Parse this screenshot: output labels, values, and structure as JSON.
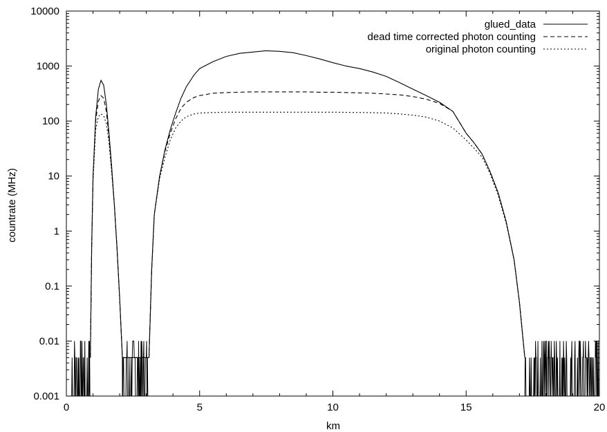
{
  "chart_data": {
    "type": "line",
    "title": "",
    "xlabel": "km",
    "ylabel": "countrate (MHz)",
    "xlim": [
      0,
      20
    ],
    "ylim": [
      0.001,
      10000
    ],
    "yscale": "log",
    "grid": false,
    "legend_position": "top-right",
    "x_ticks": [
      0,
      5,
      10,
      15,
      20
    ],
    "x_tick_labels": [
      "0",
      "5",
      "10",
      "15",
      "20"
    ],
    "y_ticks": [
      0.001,
      0.01,
      0.1,
      1,
      10,
      100,
      1000,
      10000
    ],
    "y_tick_labels": [
      "0.001",
      "0.01",
      "0.1",
      "1",
      "10",
      "100",
      "1000",
      "10000"
    ],
    "series": [
      {
        "name": "glued_data",
        "dash": "solid",
        "x": [
          0.9,
          0.95,
          1.0,
          1.1,
          1.2,
          1.3,
          1.4,
          1.5,
          1.6,
          1.7,
          1.8,
          1.9,
          2.0,
          2.1,
          3.1,
          3.2,
          3.3,
          3.5,
          3.7,
          3.9,
          4.1,
          4.3,
          4.5,
          4.8,
          5.0,
          5.5,
          6.0,
          6.5,
          7.0,
          7.5,
          8.0,
          8.5,
          9.0,
          9.5,
          10.0,
          10.5,
          11.0,
          11.5,
          12.0,
          12.5,
          13.0,
          13.5,
          14.0,
          14.5,
          15.0,
          15.3,
          15.6,
          15.9,
          16.2,
          16.5,
          16.8,
          17.0,
          17.2
        ],
        "y": [
          0.005,
          0.5,
          10,
          120,
          380,
          550,
          450,
          200,
          60,
          15,
          3,
          0.5,
          0.06,
          0.005,
          0.005,
          0.2,
          2,
          10,
          30,
          70,
          140,
          260,
          420,
          700,
          900,
          1200,
          1500,
          1700,
          1800,
          1900,
          1850,
          1750,
          1550,
          1350,
          1150,
          1000,
          900,
          780,
          650,
          500,
          380,
          290,
          220,
          150,
          60,
          40,
          25,
          12,
          5,
          1.5,
          0.3,
          0.05,
          0.005
        ]
      },
      {
        "name": "dead time corrected photon counting",
        "dash": "dashed",
        "x": [
          0.9,
          0.95,
          1.0,
          1.1,
          1.2,
          1.3,
          1.4,
          1.5,
          1.6,
          1.7,
          1.8,
          1.9,
          2.0,
          2.1,
          3.1,
          3.2,
          3.3,
          3.5,
          3.7,
          3.9,
          4.1,
          4.3,
          4.5,
          4.8,
          5.0,
          5.5,
          6.0,
          6.5,
          7.0,
          7.5,
          8.0,
          8.5,
          9.0,
          9.5,
          10.0,
          10.5,
          11.0,
          11.5,
          12.0,
          12.5,
          13.0,
          13.5,
          14.0,
          14.5,
          15.0,
          15.3,
          15.6,
          15.9,
          16.2,
          16.5,
          16.8,
          17.0,
          17.2
        ],
        "y": [
          0.005,
          0.5,
          10,
          100,
          230,
          290,
          260,
          150,
          50,
          13,
          3,
          0.5,
          0.06,
          0.005,
          0.005,
          0.2,
          2,
          10,
          28,
          60,
          110,
          170,
          220,
          270,
          290,
          320,
          330,
          335,
          340,
          340,
          340,
          340,
          340,
          335,
          335,
          330,
          325,
          320,
          310,
          300,
          280,
          250,
          210,
          150,
          60,
          40,
          25,
          12,
          5,
          1.5,
          0.3,
          0.05,
          0.005
        ]
      },
      {
        "name": "original photon counting",
        "dash": "dotted",
        "x": [
          0.9,
          0.95,
          1.0,
          1.1,
          1.2,
          1.3,
          1.4,
          1.5,
          1.6,
          1.7,
          1.8,
          1.9,
          2.0,
          2.1,
          3.1,
          3.2,
          3.3,
          3.5,
          3.7,
          3.9,
          4.1,
          4.3,
          4.5,
          4.8,
          5.0,
          5.5,
          6.0,
          6.5,
          7.0,
          7.5,
          8.0,
          8.5,
          9.0,
          9.5,
          10.0,
          10.5,
          11.0,
          11.5,
          12.0,
          12.5,
          13.0,
          13.5,
          14.0,
          14.5,
          15.0,
          15.3,
          15.6,
          15.9,
          16.2,
          16.5,
          16.8,
          17.0,
          17.2
        ],
        "y": [
          0.005,
          0.5,
          8,
          70,
          120,
          135,
          125,
          90,
          40,
          12,
          3,
          0.5,
          0.06,
          0.005,
          0.005,
          0.2,
          2,
          9,
          22,
          45,
          75,
          100,
          120,
          135,
          140,
          143,
          145,
          145,
          145,
          145,
          145,
          145,
          145,
          145,
          145,
          144,
          143,
          142,
          140,
          135,
          128,
          118,
          100,
          75,
          45,
          32,
          22,
          11,
          4.5,
          1.4,
          0.3,
          0.05,
          0.005
        ]
      }
    ],
    "noise_floor": {
      "levels": [
        0.005,
        0.01
      ],
      "ranges": [
        [
          0.2,
          0.9
        ],
        [
          2.1,
          3.1
        ],
        [
          17.2,
          20.0
        ]
      ]
    }
  }
}
